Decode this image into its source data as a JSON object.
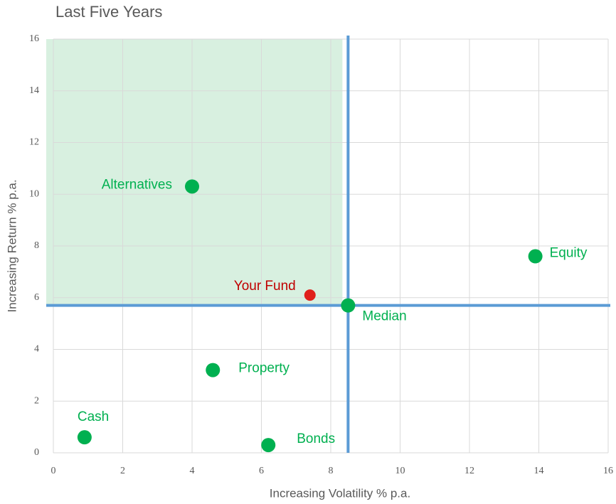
{
  "chart_data": {
    "type": "scatter",
    "title": "Last Five Years",
    "xlabel": "Increasing Volatility % p.a.",
    "ylabel": "Increasing Return % p.a.",
    "xlim": [
      0,
      16
    ],
    "ylim": [
      0,
      16
    ],
    "xticks": [
      0,
      2,
      4,
      6,
      8,
      10,
      12,
      14,
      16
    ],
    "yticks": [
      0,
      2,
      4,
      6,
      8,
      10,
      12,
      14,
      16
    ],
    "grid": true,
    "median_line_color": "#5b9bd5",
    "shade_color": "#d8f0e0",
    "series": [
      {
        "name": "Alternatives",
        "color": "#00b050",
        "x": [
          4.0
        ],
        "y": [
          10.3
        ]
      },
      {
        "name": "Your Fund",
        "color": "#e0201b",
        "label_color": "#c00000",
        "x": [
          7.4
        ],
        "y": [
          6.1
        ]
      },
      {
        "name": "Median",
        "color": "#00b050",
        "x": [
          8.5
        ],
        "y": [
          5.7
        ]
      },
      {
        "name": "Equity",
        "color": "#00b050",
        "x": [
          13.9
        ],
        "y": [
          7.6
        ]
      },
      {
        "name": "Property",
        "color": "#00b050",
        "x": [
          4.6
        ],
        "y": [
          3.2
        ]
      },
      {
        "name": "Cash",
        "color": "#00b050",
        "x": [
          0.9
        ],
        "y": [
          0.6
        ]
      },
      {
        "name": "Bonds",
        "color": "#00b050",
        "x": [
          6.2
        ],
        "y": [
          0.3
        ]
      }
    ]
  }
}
